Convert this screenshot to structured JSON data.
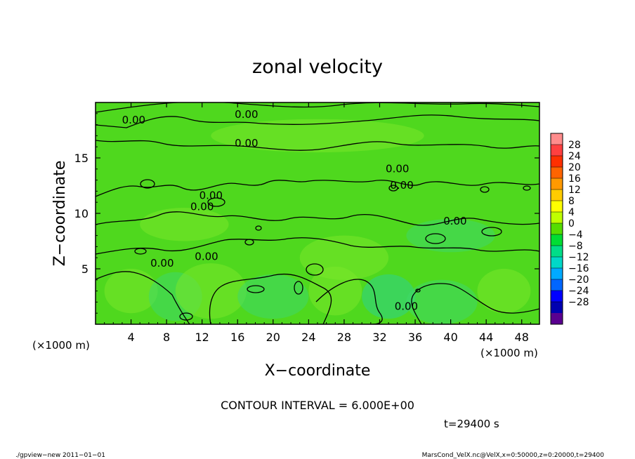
{
  "chart_data": {
    "type": "heatmap",
    "title": "zonal velocity",
    "xlabel": "X−coordinate",
    "ylabel": "Z−coordinate",
    "x_unit_left": "(×1000 m)",
    "x_unit_right": "(×1000 m)",
    "xlim": [
      0,
      50
    ],
    "ylim": [
      0,
      20
    ],
    "x_ticks": [
      4,
      8,
      12,
      16,
      20,
      24,
      28,
      32,
      36,
      40,
      44,
      48
    ],
    "y_ticks": [
      5,
      10,
      15
    ],
    "contour_interval_text": "CONTOUR INTERVAL = 6.000E+00",
    "time_text": "t=29400 s",
    "footer_left": "./gpview−new   2011−01−01",
    "footer_right": "MarsCond_VelX.nc@VelX,x=0:50000,z=0:20000,t=29400",
    "contour_labels": [
      {
        "text": "0.00",
        "x": 4.3,
        "z": 18.1
      },
      {
        "text": "0.00",
        "x": 17.0,
        "z": 18.6
      },
      {
        "text": "0.00",
        "x": 17.0,
        "z": 16.0
      },
      {
        "text": "0.00",
        "x": 34.0,
        "z": 13.7
      },
      {
        "text": "0.00",
        "x": 34.5,
        "z": 12.2
      },
      {
        "text": "0.00",
        "x": 13.0,
        "z": 11.3
      },
      {
        "text": "0.00",
        "x": 12.0,
        "z": 10.3
      },
      {
        "text": "0.00",
        "x": 40.5,
        "z": 9.0
      },
      {
        "text": "0.00",
        "x": 7.5,
        "z": 5.2
      },
      {
        "text": "0.00",
        "x": 12.5,
        "z": 5.8
      },
      {
        "text": "0.00",
        "x": 35.0,
        "z": 1.3
      }
    ],
    "colorbar": {
      "labels": [
        "28",
        "24",
        "20",
        "16",
        "12",
        "8",
        "4",
        "0",
        "−4",
        "−8",
        "−12",
        "−16",
        "−20",
        "−24",
        "−28"
      ],
      "colors": [
        "#ff8c8c",
        "#ff4040",
        "#ff3000",
        "#ff6400",
        "#ff9900",
        "#ffcc00",
        "#ffff00",
        "#bfff00",
        "#55dd00",
        "#00dd33",
        "#00dd88",
        "#00d8c8",
        "#00aaff",
        "#0066ff",
        "#0000ff",
        "#0000b0",
        "#5a0090"
      ]
    },
    "field_colors": {
      "base": "#4fd81e",
      "light": "#7ae82a",
      "cool": "#3ed86a",
      "cooler": "#2ed38c"
    }
  }
}
